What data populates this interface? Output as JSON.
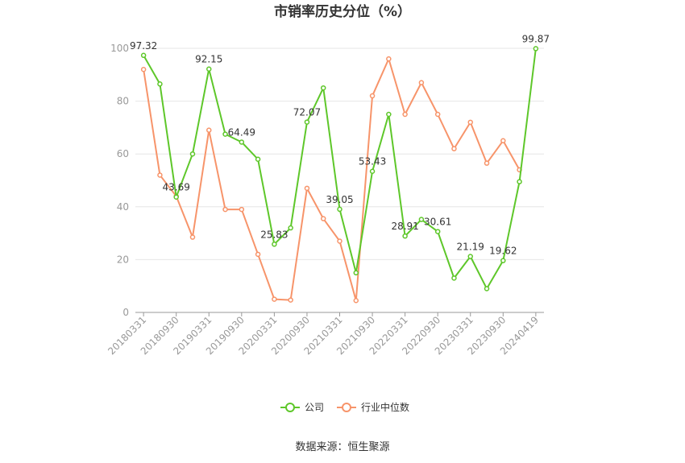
{
  "chart_data": {
    "type": "line",
    "title": "市销率历史分位（%）",
    "ylim": [
      0,
      100
    ],
    "yticks": [
      0,
      20,
      40,
      60,
      80,
      100
    ],
    "grid": true,
    "legend_position": "bottom",
    "x": [
      "20180331",
      "20180630",
      "20180930",
      "20181231",
      "20190331",
      "20190630",
      "20190930",
      "20191231",
      "20200331",
      "20200630",
      "20200930",
      "20201231",
      "20210331",
      "20210630",
      "20210930",
      "20211231",
      "20220331",
      "20220630",
      "20220930",
      "20221231",
      "20230331",
      "20230630",
      "20230930",
      "20231231",
      "20240419"
    ],
    "xtick_labels": [
      "20180331",
      "20180930",
      "20190331",
      "20190930",
      "20200331",
      "20200930",
      "20210331",
      "20210930",
      "20220331",
      "20220930",
      "20230331",
      "20230930",
      "20240419"
    ],
    "series": [
      {
        "name": "公司",
        "color": "#5ec72a",
        "values": [
          97.32,
          86.5,
          43.69,
          60,
          92.15,
          67.5,
          64.49,
          58,
          25.83,
          32,
          72.07,
          85,
          39.05,
          15,
          53.43,
          75,
          28.91,
          35.2,
          30.61,
          13,
          21.19,
          9,
          19.62,
          49.5,
          99.87
        ],
        "labels": {
          "0": "97.32",
          "2": "43.69",
          "4": "92.15",
          "6": "64.49",
          "8": "25.83",
          "10": "72.07",
          "12": "39.05",
          "14": "53.43",
          "16": "28.91",
          "18": "30.61",
          "20": "21.19",
          "22": "19.62",
          "24": "99.87"
        }
      },
      {
        "name": "行业中位数",
        "color": "#f7946a",
        "values": [
          92,
          52,
          44,
          28.5,
          69,
          39,
          39,
          22,
          5,
          4.7,
          47,
          35.5,
          27,
          4.5,
          82,
          96,
          75,
          87,
          75,
          62,
          72,
          56.5,
          65,
          54,
          null
        ]
      }
    ]
  },
  "source_text": "数据来源：恒生聚源"
}
